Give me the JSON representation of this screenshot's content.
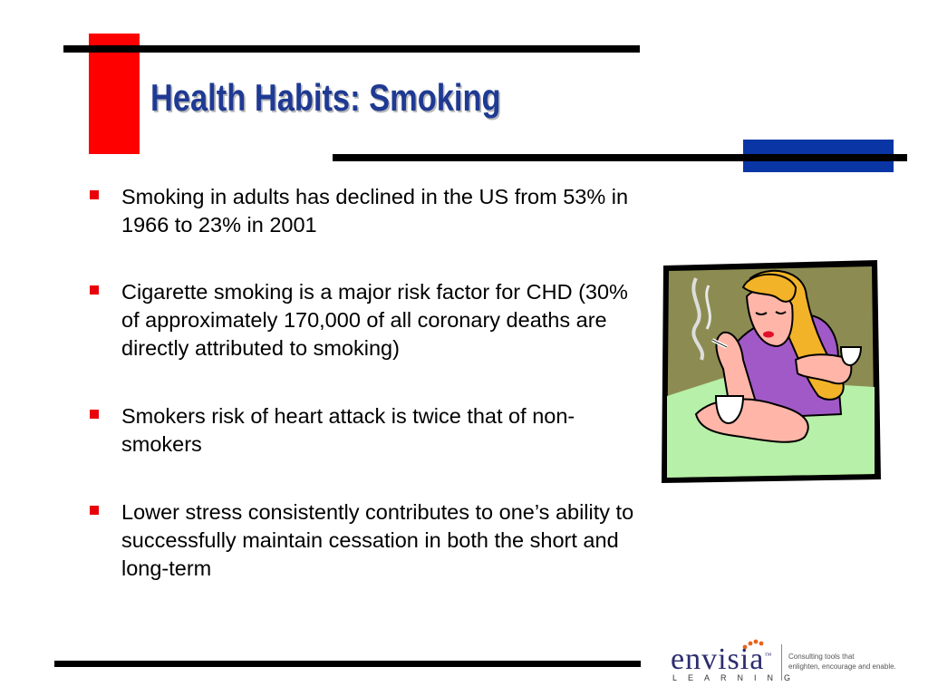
{
  "slide": {
    "title": "Health Habits:  Smoking",
    "bullets": [
      "Smoking in adults has declined in the US from 53% in 1966 to 23% in 2001",
      "Cigarette smoking is a major risk factor for CHD (30% of approximately 170,000 of all coronary deaths are directly attributed to smoking)",
      "Smokers risk of heart attack is twice that of non-smokers",
      "Lower stress consistently contributes to one’s ability to successfully maintain cessation in both the short and long-term"
    ]
  },
  "logo": {
    "name": "envisia",
    "trademark": "™",
    "sub": "LEARNING",
    "tagline_line1": "Consulting tools that",
    "tagline_line2": "enlighten, encourage and enable."
  },
  "colors": {
    "accent_red": "#ff0000",
    "accent_blue": "#0a35a5",
    "title_blue": "#1f3a93",
    "bullet_red": "#e8000b"
  },
  "icons": [
    "woman-smoking-clipart",
    "bullet-square-icon"
  ]
}
